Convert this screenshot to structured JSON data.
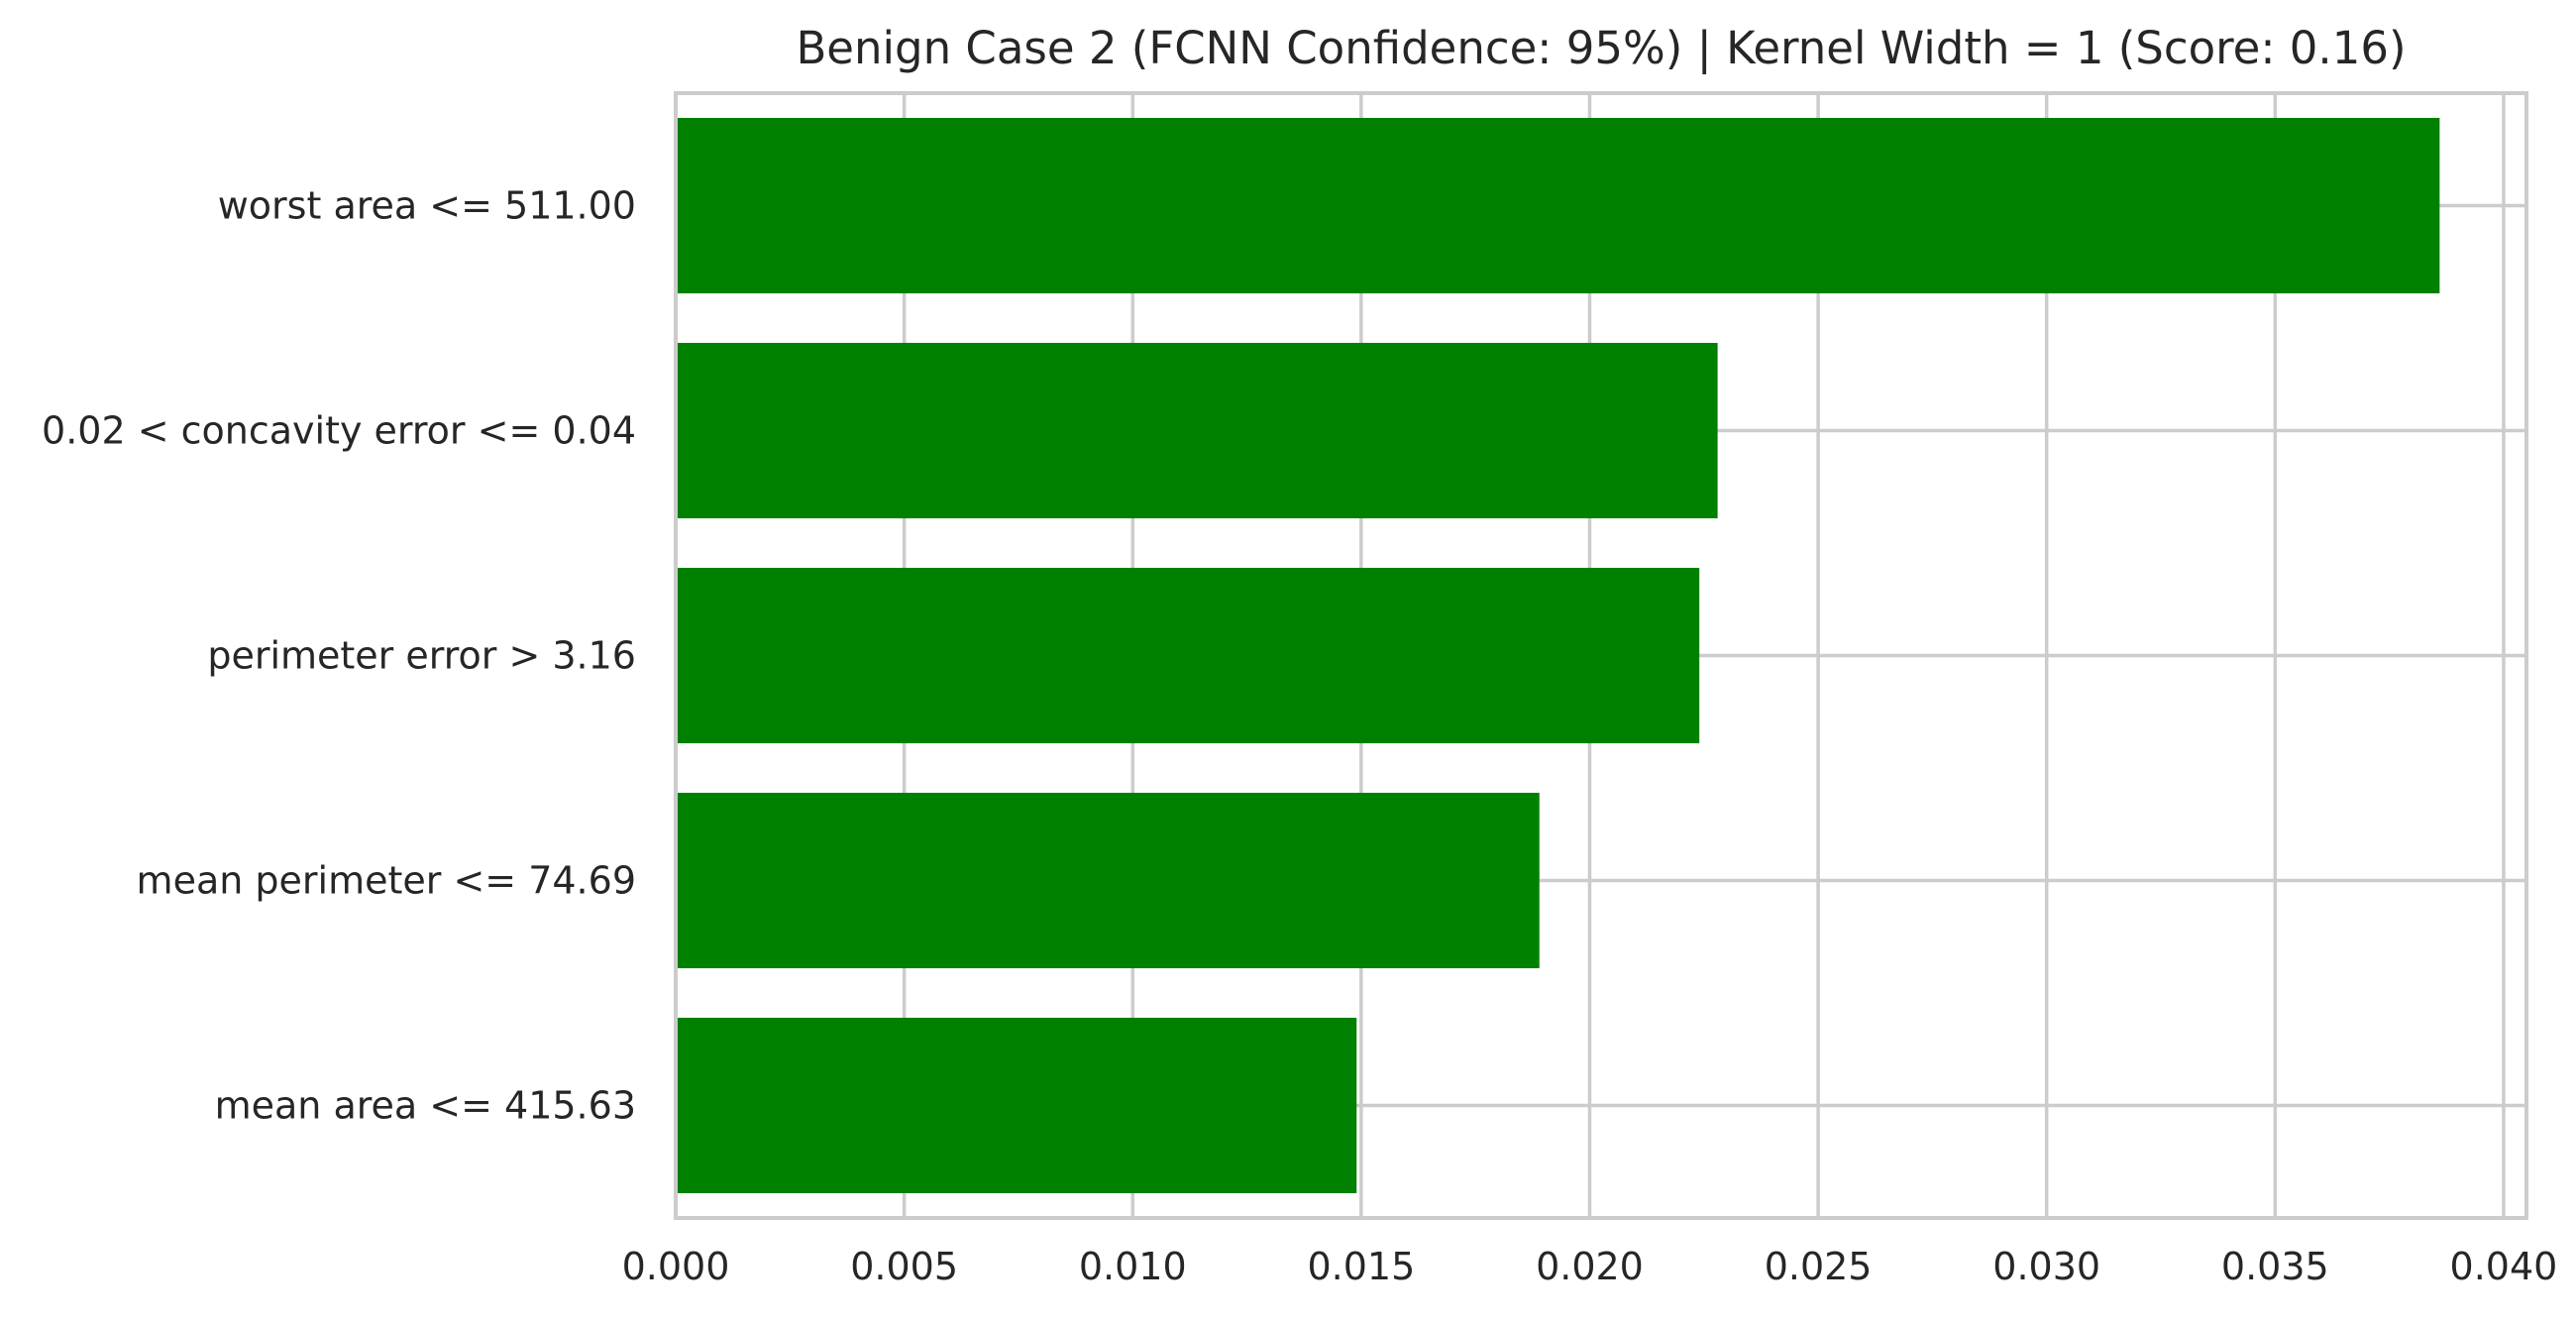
{
  "chart_data": {
    "type": "bar",
    "orientation": "horizontal",
    "title": "Benign Case 2 (FCNN Confidence: 95%) | Kernel Width = 1 (Score: 0.16)",
    "xlabel": "",
    "ylabel": "",
    "categories": [
      "worst area <= 511.00",
      "0.02 < concavity error <= 0.04",
      "perimeter error > 3.16",
      "mean perimeter <= 74.69",
      "mean area <= 415.63"
    ],
    "values": [
      0.0386,
      0.0228,
      0.0224,
      0.0189,
      0.0149
    ],
    "xlim": [
      0.0,
      0.0405
    ],
    "x_ticks": [
      0.0,
      0.005,
      0.01,
      0.015,
      0.02,
      0.025,
      0.03,
      0.035,
      0.04
    ],
    "x_tick_labels": [
      "0.000",
      "0.005",
      "0.010",
      "0.015",
      "0.020",
      "0.025",
      "0.030",
      "0.035",
      "0.040"
    ],
    "grid": true,
    "bar_color": "#008000",
    "grid_color": "#cccccc",
    "text_color": "#262626"
  }
}
